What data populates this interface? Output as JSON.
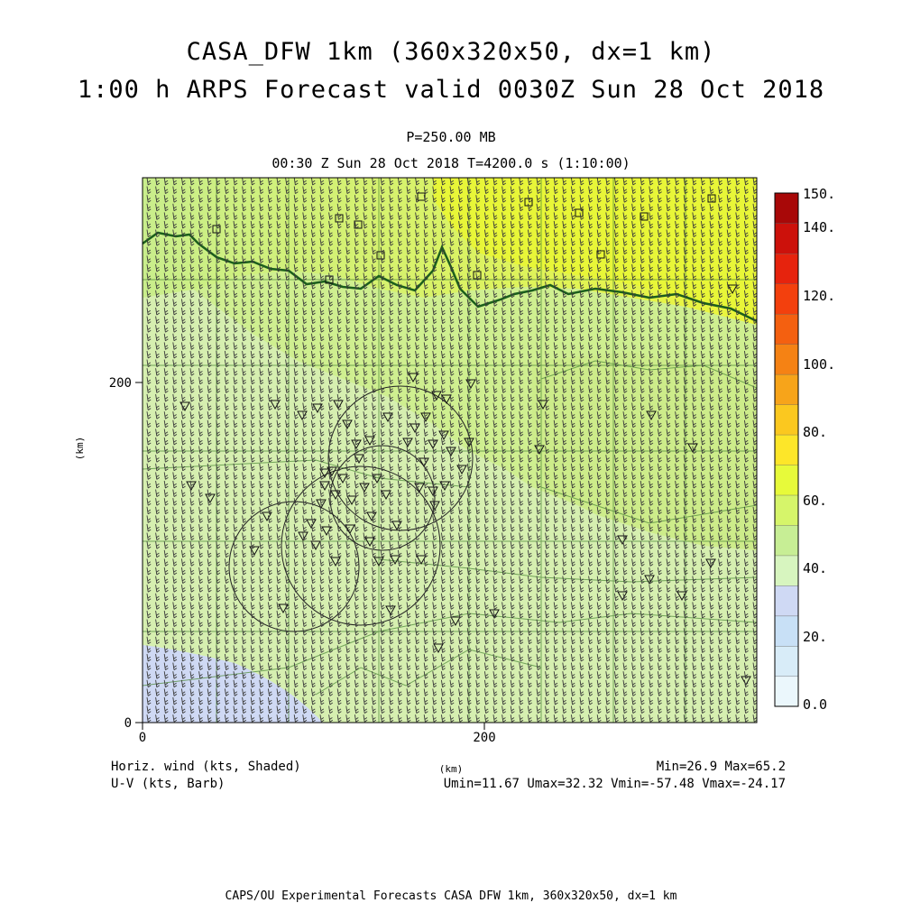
{
  "title_line1": "CASA_DFW 1km (360x320x50, dx=1 km)",
  "title_line2": "1:00 h ARPS Forecast valid 0030Z Sun 28 Oct 2018",
  "pressure_label": "P=250.00 MB",
  "time_label": "00:30 Z Sun 28 Oct 2018    T=4200.0 s (1:10:00)",
  "axes": {
    "x_ticks": [
      "0",
      "200"
    ],
    "y_ticks": [
      "0",
      "200"
    ],
    "x_label": "(km)",
    "y_label": "(km)"
  },
  "colorbar": {
    "labels": [
      "150.",
      "140.",
      "120.",
      "100.",
      "80.",
      "60.",
      "40.",
      "20.",
      "0.0"
    ],
    "colors": [
      "#ebf7fc",
      "#d8ecf8",
      "#c8e0f6",
      "#cfd9f4",
      "#d7f5bf",
      "#c7ee95",
      "#d6f56a",
      "#e7fa3a",
      "#fde629",
      "#fbc81f",
      "#f7a41a",
      "#f58214",
      "#f46010",
      "#f3400d",
      "#e6230d",
      "#cc110b",
      "#a80808"
    ]
  },
  "legend": {
    "field_label": "Horiz. wind (kts, Shaded)",
    "barb_label": "U-V (kts, Barb)",
    "minmax": "Min=26.9 Max=65.2",
    "uv_stats": "Umin=11.67 Umax=32.32 Vmin=-57.48 Vmax=-24.17"
  },
  "footer": "CAPS/OU Experimental Forecasts  CASA DFW 1km, 360x320x50, dx=1 km"
}
